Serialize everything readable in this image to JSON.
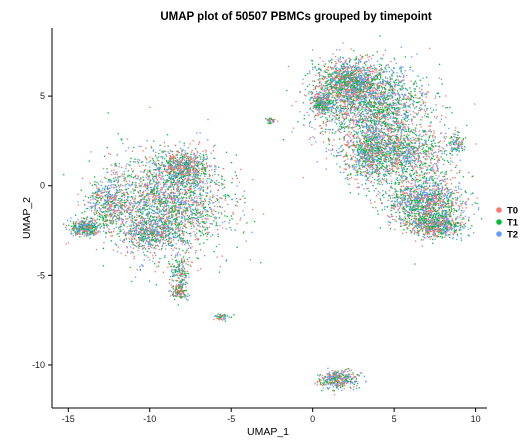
{
  "chart_data": {
    "type": "scatter",
    "title": "UMAP plot of 50507 PBMCs grouped by timepoint",
    "xlabel": "UMAP_1",
    "ylabel": "UMAP_2",
    "xlim": [
      -16,
      10.7
    ],
    "ylim": [
      -12.4,
      8.8
    ],
    "xticks": [
      -15,
      -10,
      -5,
      0,
      5,
      10
    ],
    "yticks": [
      -10,
      -5,
      0,
      5
    ],
    "grid": false,
    "legend_position": "right",
    "series": [
      {
        "name": "T0",
        "color": "#F8766D"
      },
      {
        "name": "T1",
        "color": "#00BA38"
      },
      {
        "name": "T2",
        "color": "#619CFF"
      }
    ],
    "clusters": [
      {
        "cx": -9.0,
        "cy": -1.0,
        "rx": 3.3,
        "ry": 2.6,
        "weight": 24
      },
      {
        "cx": -8.0,
        "cy": 1.0,
        "rx": 1.3,
        "ry": 0.9,
        "weight": 6
      },
      {
        "cx": -12.5,
        "cy": -1.0,
        "rx": 1.2,
        "ry": 1.3,
        "weight": 5
      },
      {
        "cx": -14.0,
        "cy": -2.3,
        "rx": 0.8,
        "ry": 0.4,
        "weight": 4
      },
      {
        "cx": -10.0,
        "cy": -2.6,
        "rx": 1.6,
        "ry": 0.7,
        "weight": 4
      },
      {
        "cx": -8.2,
        "cy": -5.0,
        "rx": 0.5,
        "ry": 1.0,
        "weight": 2
      },
      {
        "cx": -8.2,
        "cy": -5.9,
        "rx": 0.4,
        "ry": 0.3,
        "weight": 1
      },
      {
        "cx": -5.6,
        "cy": -7.3,
        "rx": 0.4,
        "ry": 0.2,
        "weight": 0.6
      },
      {
        "cx": 2.2,
        "cy": 5.8,
        "rx": 1.8,
        "ry": 1.1,
        "weight": 12
      },
      {
        "cx": 3.6,
        "cy": 4.5,
        "rx": 3.2,
        "ry": 2.0,
        "weight": 20
      },
      {
        "cx": 5.0,
        "cy": 1.8,
        "rx": 3.0,
        "ry": 1.4,
        "weight": 14
      },
      {
        "cx": 6.9,
        "cy": -0.9,
        "rx": 2.1,
        "ry": 1.3,
        "weight": 14
      },
      {
        "cx": 7.6,
        "cy": -2.2,
        "rx": 1.5,
        "ry": 0.6,
        "weight": 6
      },
      {
        "cx": 3.5,
        "cy": 2.0,
        "rx": 1.0,
        "ry": 1.6,
        "weight": 4
      },
      {
        "cx": 0.5,
        "cy": 4.6,
        "rx": 0.5,
        "ry": 0.5,
        "weight": 3
      },
      {
        "cx": 8.8,
        "cy": 2.4,
        "rx": 0.4,
        "ry": 0.4,
        "weight": 1
      },
      {
        "cx": 1.5,
        "cy": -10.8,
        "rx": 1.1,
        "ry": 0.45,
        "weight": 4
      },
      {
        "cx": -2.6,
        "cy": 3.7,
        "rx": 0.3,
        "ry": 0.18,
        "weight": 0.4
      }
    ]
  }
}
